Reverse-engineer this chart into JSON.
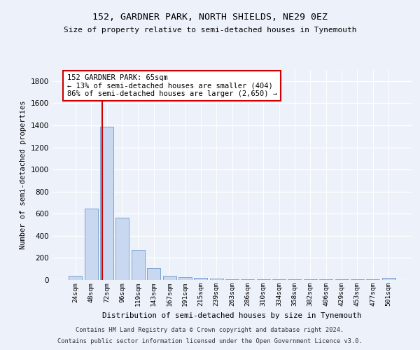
{
  "title1": "152, GARDNER PARK, NORTH SHIELDS, NE29 0EZ",
  "title2": "Size of property relative to semi-detached houses in Tynemouth",
  "xlabel": "Distribution of semi-detached houses by size in Tynemouth",
  "ylabel": "Number of semi-detached properties",
  "categories": [
    "24sqm",
    "48sqm",
    "72sqm",
    "96sqm",
    "119sqm",
    "143sqm",
    "167sqm",
    "191sqm",
    "215sqm",
    "239sqm",
    "263sqm",
    "286sqm",
    "310sqm",
    "334sqm",
    "358sqm",
    "382sqm",
    "406sqm",
    "429sqm",
    "453sqm",
    "477sqm",
    "501sqm"
  ],
  "values": [
    35,
    645,
    1385,
    565,
    270,
    110,
    38,
    28,
    22,
    15,
    5,
    5,
    5,
    5,
    5,
    5,
    5,
    5,
    5,
    5,
    18
  ],
  "bar_color": "#c8d8f0",
  "bar_edge_color": "#7098c8",
  "red_line_x": 1.72,
  "annotation_text": "152 GARDNER PARK: 65sqm\n← 13% of semi-detached houses are smaller (404)\n86% of semi-detached houses are larger (2,650) →",
  "annotation_box_color": "#ffffff",
  "annotation_box_edge": "#cc0000",
  "red_line_color": "#cc0000",
  "ylim": [
    0,
    1900
  ],
  "yticks": [
    0,
    200,
    400,
    600,
    800,
    1000,
    1200,
    1400,
    1600,
    1800
  ],
  "footer1": "Contains HM Land Registry data © Crown copyright and database right 2024.",
  "footer2": "Contains public sector information licensed under the Open Government Licence v3.0.",
  "bg_color": "#edf1fa",
  "plot_bg_color": "#edf1fa"
}
